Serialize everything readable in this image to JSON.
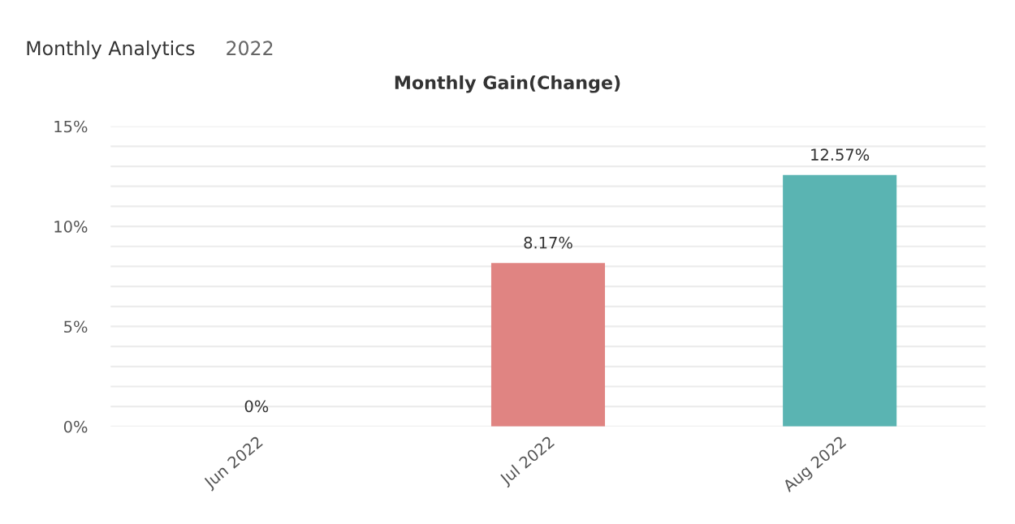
{
  "chart_data": {
    "type": "bar",
    "title": "Monthly Gain(Change)",
    "annotations": [
      "Monthly Analytics",
      "2022"
    ],
    "categories": [
      "Jun 2022",
      "Jul 2022",
      "Aug 2022"
    ],
    "values": [
      0,
      8.17,
      12.57
    ],
    "colors": [
      "#5ab4b2",
      "#e08482",
      "#5ab4b2"
    ],
    "value_labels": [
      "0%",
      "8.17%",
      "12.57%"
    ],
    "ylim": [
      0,
      15
    ],
    "yticks": [
      {
        "value": 0,
        "label": "0%"
      },
      {
        "value": 1,
        "label": null
      },
      {
        "value": 2,
        "label": null
      },
      {
        "value": 3,
        "label": null
      },
      {
        "value": 4,
        "label": null
      },
      {
        "value": 5,
        "label": "5%"
      },
      {
        "value": 6,
        "label": null
      },
      {
        "value": 7,
        "label": null
      },
      {
        "value": 8,
        "label": null
      },
      {
        "value": 9,
        "label": null
      },
      {
        "value": 10,
        "label": "10%"
      },
      {
        "value": 11,
        "label": null
      },
      {
        "value": 12,
        "label": null
      },
      {
        "value": 13,
        "label": null
      },
      {
        "value": 14,
        "label": null
      },
      {
        "value": 15,
        "label": "15%"
      }
    ],
    "grid": "y",
    "legend": false
  }
}
